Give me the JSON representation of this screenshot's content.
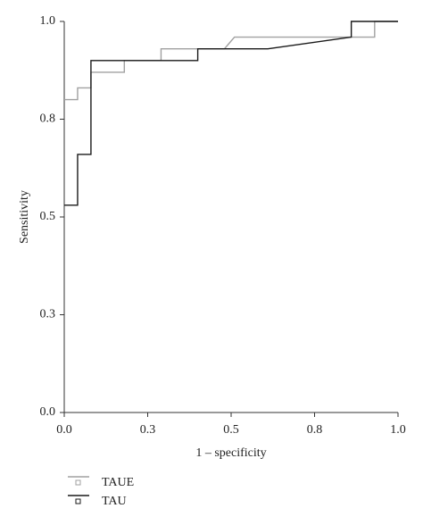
{
  "chart_data": {
    "type": "line",
    "x_label": "1 – specificity",
    "y_label": "Sensitivity",
    "xlim": [
      0,
      1
    ],
    "ylim": [
      0,
      1
    ],
    "xticks": [
      {
        "value": 0,
        "label": "0.0"
      },
      {
        "value": 0.25,
        "label": "0.3"
      },
      0.5,
      {
        "value": 0.75,
        "label": "0.8"
      },
      {
        "value": 1,
        "label": "1.0"
      }
    ],
    "yticks": [
      {
        "value": 0,
        "label": "0.0"
      },
      {
        "value": 0.25,
        "label": "0.3"
      },
      0.5,
      {
        "value": 0.75,
        "label": "0.8"
      },
      {
        "value": 1,
        "label": "1.0"
      }
    ],
    "grid": false,
    "legend": "bottom-left",
    "series": [
      {
        "name": "TAUE",
        "color": "#a0a0a0",
        "x": [
          0,
          0.04,
          0.04,
          0.08,
          0.08,
          0.18,
          0.18,
          0.29,
          0.29,
          0.48,
          0.51,
          0.93,
          0.93,
          1.0
        ],
        "values": [
          0.8,
          0.8,
          0.83,
          0.83,
          0.87,
          0.87,
          0.9,
          0.9,
          0.93,
          0.93,
          0.96,
          0.96,
          1.0,
          1.0
        ]
      },
      {
        "name": "TAU",
        "color": "#1a1a1a",
        "x": [
          0,
          0.04,
          0.04,
          0.08,
          0.08,
          0.4,
          0.4,
          0.61,
          0.86,
          0.86,
          1.0
        ],
        "values": [
          0.53,
          0.53,
          0.66,
          0.66,
          0.9,
          0.9,
          0.93,
          0.93,
          0.96,
          1.0,
          1.0
        ]
      }
    ]
  }
}
